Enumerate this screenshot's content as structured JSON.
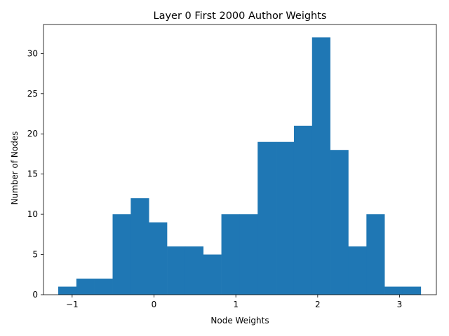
{
  "chart_data": {
    "type": "bar",
    "subtype": "histogram",
    "title": "Layer 0 First 2000 Author Weights",
    "xlabel": "Node Weights",
    "ylabel": "Number of Nodes",
    "xlim": [
      -1.35,
      3.45
    ],
    "ylim": [
      0,
      33.6
    ],
    "xticks": [
      -1,
      0,
      1,
      2,
      3
    ],
    "xtick_labels": [
      "−1",
      "0",
      "1",
      "2",
      "3"
    ],
    "yticks": [
      0,
      5,
      10,
      15,
      20,
      25,
      30
    ],
    "ytick_labels": [
      "0",
      "5",
      "10",
      "15",
      "20",
      "25",
      "30"
    ],
    "bin_start": -1.17,
    "bin_width": 0.2215,
    "counts": [
      1,
      2,
      2,
      10,
      12,
      9,
      6,
      6,
      5,
      10,
      10,
      19,
      19,
      21,
      32,
      18,
      6,
      10,
      1,
      1
    ],
    "bar_color": "#1f77b4",
    "grid": false,
    "legend": "none"
  }
}
